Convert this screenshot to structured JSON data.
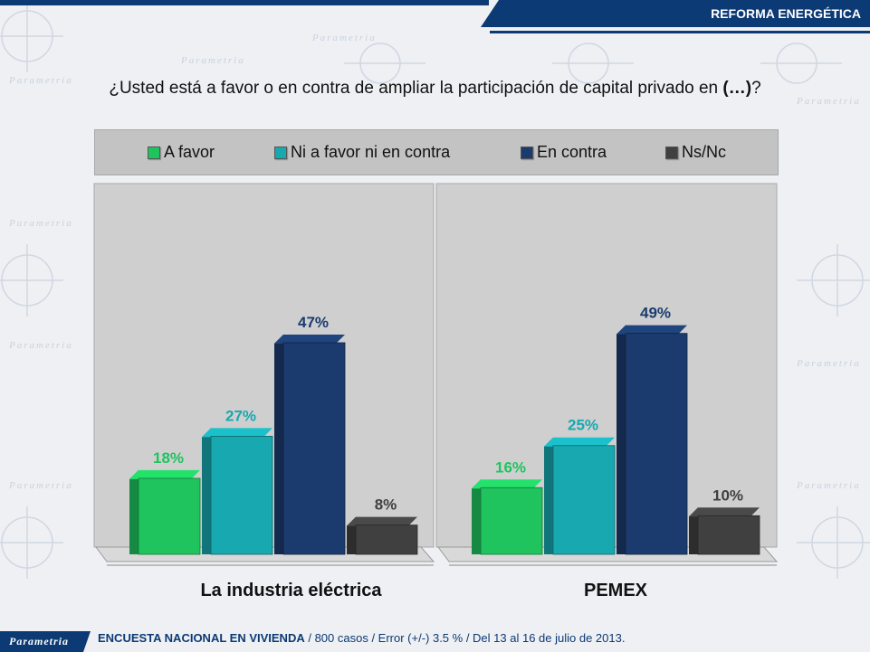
{
  "header": {
    "banner": "REFORMA ENERGÉTICA",
    "logo": "Parametria"
  },
  "question": {
    "prefix": "¿Usted está a favor o en contra de ampliar la participación de capital privado en ",
    "emph": "(…)",
    "suffix": "?"
  },
  "chart_data": {
    "type": "bar",
    "categories": [
      "La industria eléctrica",
      "PEMEX"
    ],
    "series": [
      {
        "name": "A favor",
        "values": [
          18,
          16
        ],
        "color": "#1fc45e",
        "label_color": "#1fc45e"
      },
      {
        "name": "Ni a favor ni en contra",
        "values": [
          27,
          25
        ],
        "color": "#17a8b0",
        "label_color": "#17a8b0"
      },
      {
        "name": "En contra",
        "values": [
          47,
          49
        ],
        "color": "#1b3b6e",
        "label_color": "#1b3b6e"
      },
      {
        "name": "Ns/Nc",
        "values": [
          8,
          10
        ],
        "color": "#404040",
        "label_color": "#404040"
      }
    ],
    "value_suffix": "%",
    "ylim": [
      0,
      60
    ],
    "legend_position": "top",
    "grid": false
  },
  "footer": {
    "survey": "ENCUESTA NACIONAL EN VIVIENDA",
    "details": " / 800 casos / Error (+/-) 3.5 % / Del 13 al 16 de julio de 2013."
  },
  "decor": {
    "watermark": "Parametria"
  }
}
